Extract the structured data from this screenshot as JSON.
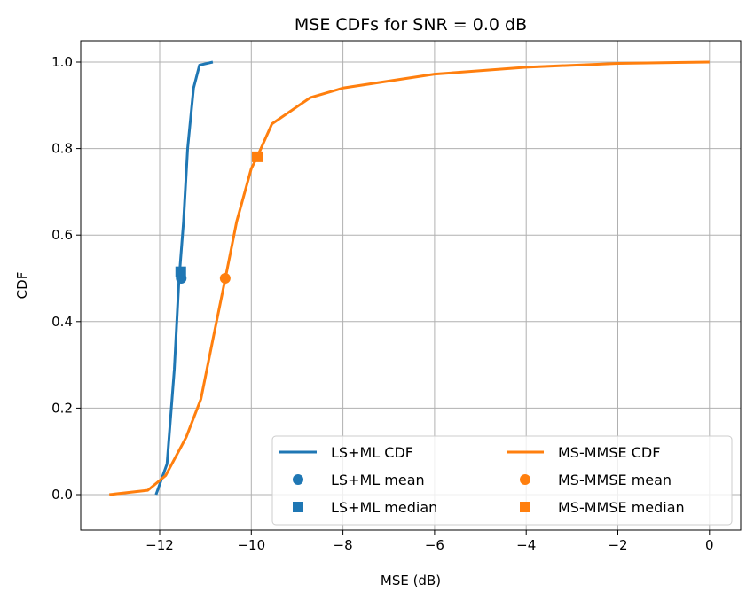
{
  "chart_data": {
    "type": "line",
    "title": "MSE CDFs for SNR = 0.0 dB",
    "xlabel": "MSE (dB)",
    "ylabel": "CDF",
    "xlim": [
      -13.72,
      0.68
    ],
    "ylim": [
      -0.05,
      1.05
    ],
    "xticks": [
      -12,
      -10,
      -8,
      -6,
      -4,
      -2,
      0
    ],
    "xtick_labels": [
      "−12",
      "−10",
      "−8",
      "−6",
      "−4",
      "−2",
      "0"
    ],
    "yticks": [
      0,
      0.2,
      0.4,
      0.6,
      0.8,
      1.0
    ],
    "ytick_labels": [
      "0.0",
      "0.2",
      "0.4",
      "0.6",
      "0.8",
      "1.0"
    ],
    "grid": true,
    "legend_position": "bottom-right",
    "legend_columns": 2,
    "series": [
      {
        "name": "LS+ML CDF",
        "color": "#1f77b4",
        "kind": "line",
        "x": [
          -12.08,
          -11.84,
          -11.68,
          -11.58,
          -11.48,
          -11.39,
          -11.26,
          -11.13,
          -10.84
        ],
        "y": [
          0.0,
          0.071,
          0.29,
          0.494,
          0.63,
          0.8,
          0.94,
          0.993,
          1.0
        ]
      },
      {
        "name": "MS-MMSE CDF",
        "color": "#ff7f0e",
        "kind": "line",
        "x": [
          -13.1,
          -12.26,
          -11.87,
          -11.42,
          -11.1,
          -10.84,
          -10.57,
          -10.32,
          -10.0,
          -9.87,
          -9.55,
          -8.71,
          -8.0,
          -6.0,
          -4.0,
          -2.0,
          0.0
        ],
        "y": [
          0.0,
          0.01,
          0.044,
          0.133,
          0.221,
          0.358,
          0.498,
          0.631,
          0.754,
          0.781,
          0.857,
          0.918,
          0.94,
          0.972,
          0.988,
          0.997,
          1.0
        ]
      },
      {
        "name": "LS+ML mean",
        "color": "#1f77b4",
        "kind": "circle",
        "x": [
          -11.53
        ],
        "y": [
          0.5
        ]
      },
      {
        "name": "MS-MMSE mean",
        "color": "#ff7f0e",
        "kind": "circle",
        "x": [
          -10.57
        ],
        "y": [
          0.5
        ]
      },
      {
        "name": "LS+ML median",
        "color": "#1f77b4",
        "kind": "square",
        "x": [
          -11.54
        ],
        "y": [
          0.515
        ]
      },
      {
        "name": "MS-MMSE median",
        "color": "#ff7f0e",
        "kind": "square",
        "x": [
          -9.87
        ],
        "y": [
          0.781
        ]
      }
    ],
    "legend_order": [
      0,
      2,
      4,
      1,
      3,
      5
    ]
  }
}
